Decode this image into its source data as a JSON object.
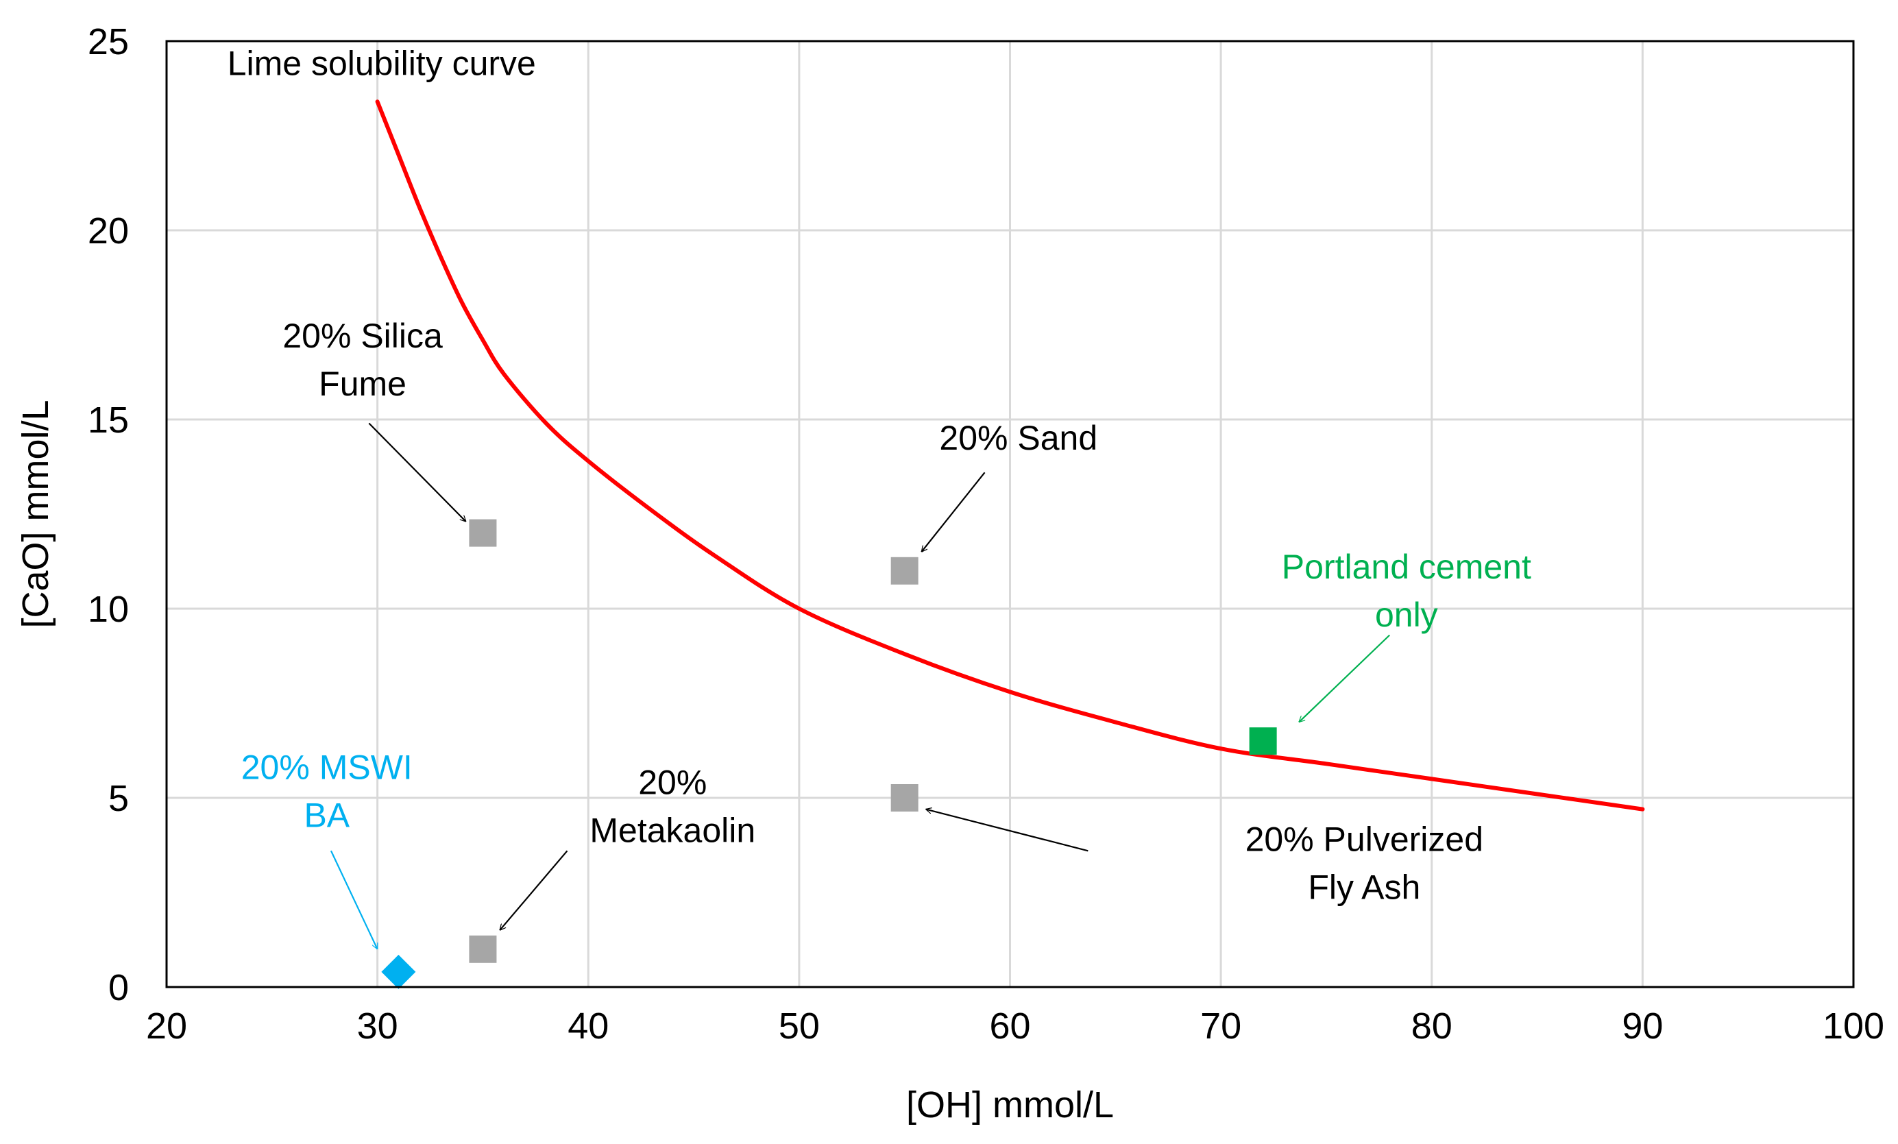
{
  "chart_data": {
    "type": "scatter",
    "title": "",
    "xlabel": "[OH] mmol/L",
    "ylabel": "[CaO] mmol/L",
    "xlim": [
      20,
      100
    ],
    "ylim": [
      0,
      25
    ],
    "xticks": [
      20,
      30,
      40,
      50,
      60,
      70,
      80,
      90,
      100
    ],
    "yticks": [
      0,
      5,
      10,
      15,
      20,
      25
    ],
    "grid": true,
    "colors": {
      "curve": "#ff0000",
      "grey_marker": "#a6a6a6",
      "green": "#00b050",
      "blue": "#00b0f0",
      "grid": "#d9d9d9",
      "axis": "#000000",
      "text": "#000000"
    },
    "curve": {
      "name": "Lime solubility curve",
      "x": [
        30,
        31,
        32,
        33,
        34,
        35,
        36,
        38,
        40,
        43,
        46,
        50,
        55,
        60,
        65,
        70,
        75,
        80,
        85,
        90
      ],
      "y": [
        23.4,
        22.0,
        20.6,
        19.3,
        18.1,
        17.1,
        16.2,
        14.9,
        13.9,
        12.6,
        11.4,
        10.0,
        8.8,
        7.8,
        7.0,
        6.3,
        5.9,
        5.5,
        5.1,
        4.7
      ]
    },
    "points": [
      {
        "name": "20% Silica Fume",
        "x": 35,
        "y": 12,
        "marker": "square",
        "color": "#a6a6a6"
      },
      {
        "name": "20% Sand",
        "x": 55,
        "y": 11,
        "marker": "square",
        "color": "#a6a6a6"
      },
      {
        "name": "Portland cement only",
        "x": 72,
        "y": 6.5,
        "marker": "square",
        "color": "#00b050"
      },
      {
        "name": "20% Pulverized Fly Ash",
        "x": 55,
        "y": 5,
        "marker": "square",
        "color": "#a6a6a6"
      },
      {
        "name": "20% Metakaolin",
        "x": 35,
        "y": 1,
        "marker": "square",
        "color": "#a6a6a6"
      },
      {
        "name": "20% MSWI BA",
        "x": 31,
        "y": 0.4,
        "marker": "diamond",
        "color": "#00b0f0"
      }
    ],
    "annotations": [
      {
        "lines": [
          "Lime solubility curve"
        ],
        "text_x": 30.2,
        "text_y": 24.1,
        "color": "#000000"
      },
      {
        "lines": [
          "20% Silica",
          "Fume"
        ],
        "text_x": 29.3,
        "text_y": 16.9,
        "color": "#000000",
        "arrow_from": [
          29.6,
          14.9
        ],
        "arrow_to": [
          34.2,
          12.3
        ]
      },
      {
        "lines": [
          "20% Sand"
        ],
        "text_x": 60.4,
        "text_y": 14.2,
        "color": "#000000",
        "arrow_from": [
          58.8,
          13.6
        ],
        "arrow_to": [
          55.8,
          11.5
        ]
      },
      {
        "lines": [
          "Portland cement",
          "only"
        ],
        "text_x": 78.8,
        "text_y": 10.8,
        "color": "#00b050",
        "arrow_from": [
          78.0,
          9.3
        ],
        "arrow_to": [
          73.7,
          7.0
        ]
      },
      {
        "lines": [
          "20% Pulverized",
          "Fly Ash"
        ],
        "text_x": 76.8,
        "text_y": 3.6,
        "color": "#000000",
        "arrow_from": [
          63.7,
          3.6
        ],
        "arrow_to": [
          56.0,
          4.7
        ]
      },
      {
        "lines": [
          "20%",
          "Metakaolin"
        ],
        "text_x": 44.0,
        "text_y": 5.1,
        "color": "#000000",
        "arrow_from": [
          39.0,
          3.6
        ],
        "arrow_to": [
          35.8,
          1.5
        ]
      },
      {
        "lines": [
          "20% MSWI",
          "BA"
        ],
        "text_x": 27.6,
        "text_y": 5.5,
        "color": "#00b0f0",
        "arrow_from": [
          27.8,
          3.6
        ],
        "arrow_to": [
          30.0,
          1.0
        ]
      }
    ]
  }
}
